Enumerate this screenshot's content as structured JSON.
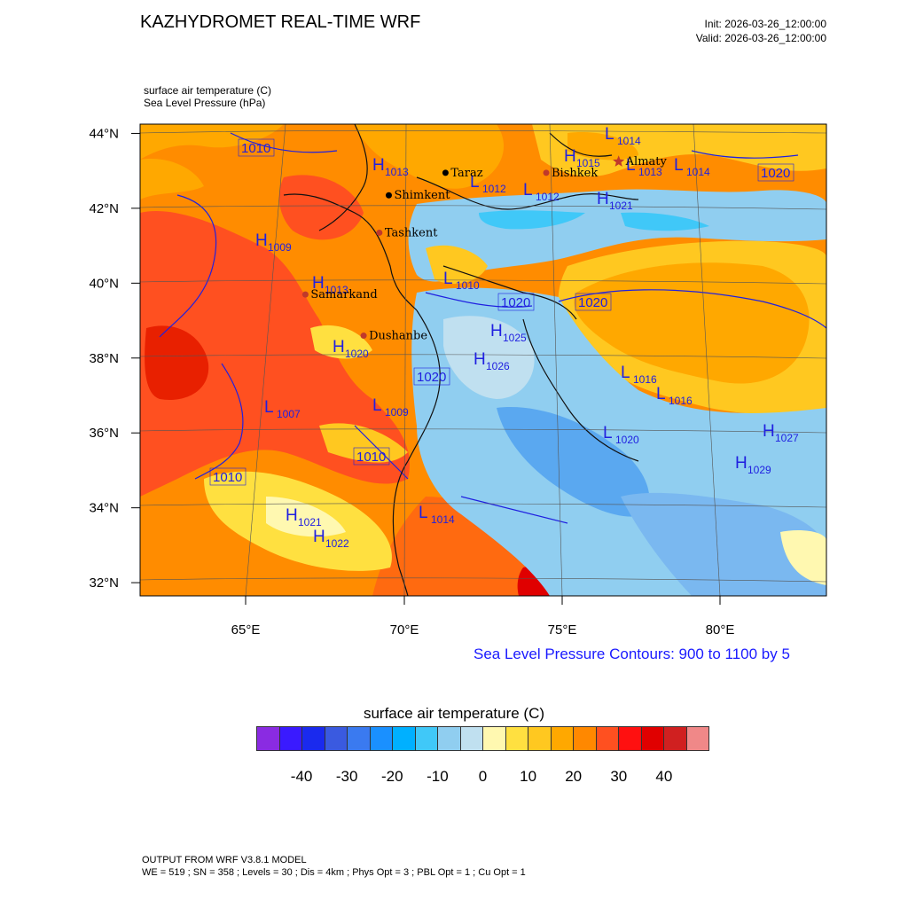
{
  "header": {
    "title": "KAZHYDROMET REAL-TIME WRF",
    "init": "Init: 2026-03-26_12:00:00",
    "valid": "Valid: 2026-03-26_12:00:00"
  },
  "fields": {
    "temperature": "surface air temperature   (C)",
    "pressure": "Sea Level Pressure   (hPa)"
  },
  "axes": {
    "lat_labels": [
      "44°N",
      "42°N",
      "40°N",
      "38°N",
      "36°N",
      "34°N",
      "32°N"
    ],
    "lon_labels": [
      "65°E",
      "70°E",
      "75°E",
      "80°E"
    ]
  },
  "cities": [
    {
      "name": "Almaty",
      "lon": 76.9,
      "lat": 43.2,
      "marker": "star",
      "color": "#c0392b"
    },
    {
      "name": "Taraz",
      "lon": 71.4,
      "lat": 42.9,
      "marker": "dot",
      "color": "#000000"
    },
    {
      "name": "Bishkek",
      "lon": 74.6,
      "lat": 42.9,
      "marker": "dot",
      "color": "#c0392b"
    },
    {
      "name": "Shimkent",
      "lon": 69.6,
      "lat": 42.3,
      "marker": "dot",
      "color": "#000000"
    },
    {
      "name": "Tashkent",
      "lon": 69.3,
      "lat": 41.3,
      "marker": "dot",
      "color": "#c0392b"
    },
    {
      "name": "Samarkand",
      "lon": 66.95,
      "lat": 39.65,
      "marker": "dot",
      "color": "#c0392b"
    },
    {
      "name": "Dushanbe",
      "lon": 68.8,
      "lat": 38.55,
      "marker": "dot",
      "color": "#c0392b"
    }
  ],
  "pressure_centers": [
    {
      "type": "H",
      "value": "1013"
    },
    {
      "type": "H",
      "value": "1009"
    },
    {
      "type": "H",
      "value": "1013"
    },
    {
      "type": "L",
      "value": "1012"
    },
    {
      "type": "L",
      "value": "1012"
    },
    {
      "type": "L",
      "value": "1014"
    },
    {
      "type": "H",
      "value": "1015"
    },
    {
      "type": "L",
      "value": "1013"
    },
    {
      "type": "L",
      "value": "1014"
    },
    {
      "type": "H",
      "value": "1021"
    },
    {
      "type": "L",
      "value": "1010"
    },
    {
      "type": "L",
      "value": "1016"
    },
    {
      "type": "L",
      "value": "1007"
    },
    {
      "type": "L",
      "value": "1009"
    },
    {
      "type": "H",
      "value": "1020"
    },
    {
      "type": "H",
      "value": "1025"
    },
    {
      "type": "H",
      "value": "1026"
    },
    {
      "type": "L",
      "value": "1014"
    },
    {
      "type": "H",
      "value": "1021"
    },
    {
      "type": "H",
      "value": "1022"
    },
    {
      "type": "H",
      "value": "1029"
    },
    {
      "type": "L",
      "value": "1020"
    },
    {
      "type": "H",
      "value": "1027"
    },
    {
      "type": "L",
      "value": "1016"
    }
  ],
  "contour_labels": [
    "1010",
    "1020",
    "1020",
    "1020",
    "1010",
    "1010",
    "1020"
  ],
  "contour_note": "Sea Level Pressure Contours: 900 to 1100 by 5",
  "colorbar": {
    "title": "surface air temperature  (C)",
    "colors": [
      "#8a2be2",
      "#3a1aff",
      "#1a2aee",
      "#3a5ae0",
      "#3a7af0",
      "#1a90ff",
      "#00b0ff",
      "#40c8f8",
      "#90cef0",
      "#c0e0f0",
      "#fff8b0",
      "#ffe040",
      "#ffc820",
      "#ffa800",
      "#ff8800",
      "#ff5020",
      "#ff1010",
      "#e00000",
      "#d02020",
      "#f08888"
    ],
    "ticks": [
      "-40",
      "-30",
      "-20",
      "-10",
      "0",
      "10",
      "20",
      "30",
      "40"
    ]
  },
  "footer": {
    "line1": "OUTPUT FROM WRF V3.8.1 MODEL",
    "line2": "WE = 519 ; SN = 358 ; Levels = 30 ; Dis = 4km ; Phys Opt = 3 ; PBL Opt = 1 ; Cu Opt = 1"
  }
}
